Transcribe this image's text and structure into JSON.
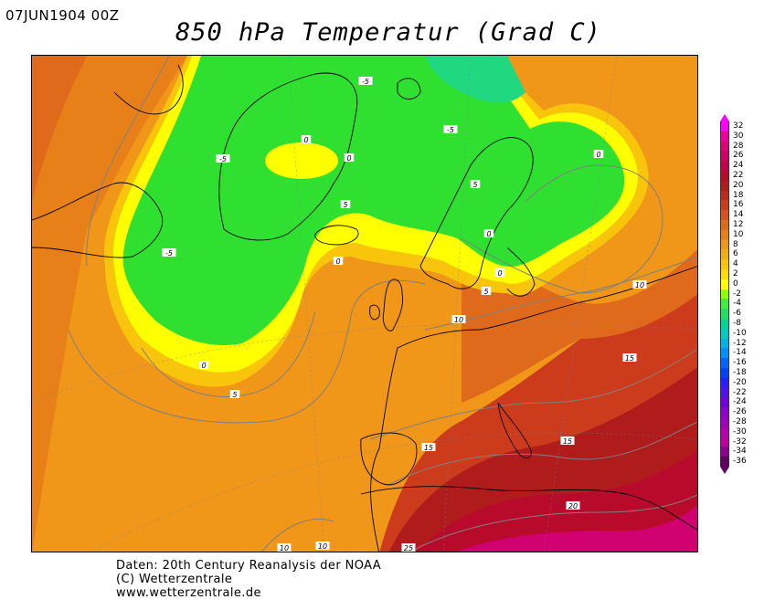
{
  "header": {
    "datetime": "07JUN1904 00Z",
    "title": "850 hPa Temperatur (Grad C)"
  },
  "credits": {
    "line1": "Daten: 20th Century Reanalysis der NOAA",
    "line2": "(C) Wetterzentrale",
    "line3": "www.wetterzentrale.de"
  },
  "legend": {
    "levels": [
      "32",
      "30",
      "28",
      "26",
      "24",
      "22",
      "20",
      "18",
      "16",
      "14",
      "12",
      "10",
      "8",
      "6",
      "4",
      "2",
      "0",
      "-2",
      "-4",
      "-6",
      "-8",
      "-10",
      "-12",
      "-14",
      "-16",
      "-18",
      "-20",
      "-22",
      "-24",
      "-26",
      "-28",
      "-30",
      "-32",
      "-34",
      "-36"
    ],
    "colors": [
      "#ff00ff",
      "#f0009a",
      "#e0007a",
      "#d20060",
      "#c8004a",
      "#b80a2a",
      "#b01c1c",
      "#c0281c",
      "#cc3c1c",
      "#d8521c",
      "#e06a1c",
      "#e8801a",
      "#f09618",
      "#f4ac14",
      "#f8c40c",
      "#fcdc00",
      "#ffff00",
      "#90ff00",
      "#40f040",
      "#20e060",
      "#00d890",
      "#00ccc0",
      "#00b4e8",
      "#0090ff",
      "#0064ff",
      "#0040ff",
      "#2a1cff",
      "#5010f0",
      "#7000e0",
      "#8c00d0",
      "#a000c0",
      "#b400b0",
      "#c000a0",
      "#900090",
      "#600060"
    ]
  },
  "map": {
    "contour_labels": [
      "-5",
      "-5",
      "-5",
      "-5",
      "0",
      "0",
      "0",
      "0",
      "0",
      "0",
      "0",
      "5",
      "5",
      "5",
      "5",
      "10",
      "10",
      "10",
      "10",
      "15",
      "15",
      "15",
      "20",
      "25"
    ],
    "region_colors": {
      "green": "#30e030",
      "yellow_green": "#90f020",
      "yellow": "#ffff00",
      "light_orange": "#f8c40c",
      "orange": "#f09618",
      "dark_orange": "#e06a1c",
      "red_orange": "#cc3c1c",
      "dark_red": "#b01c1c",
      "crimson": "#b80a2a",
      "magenta": "#d00070"
    }
  }
}
